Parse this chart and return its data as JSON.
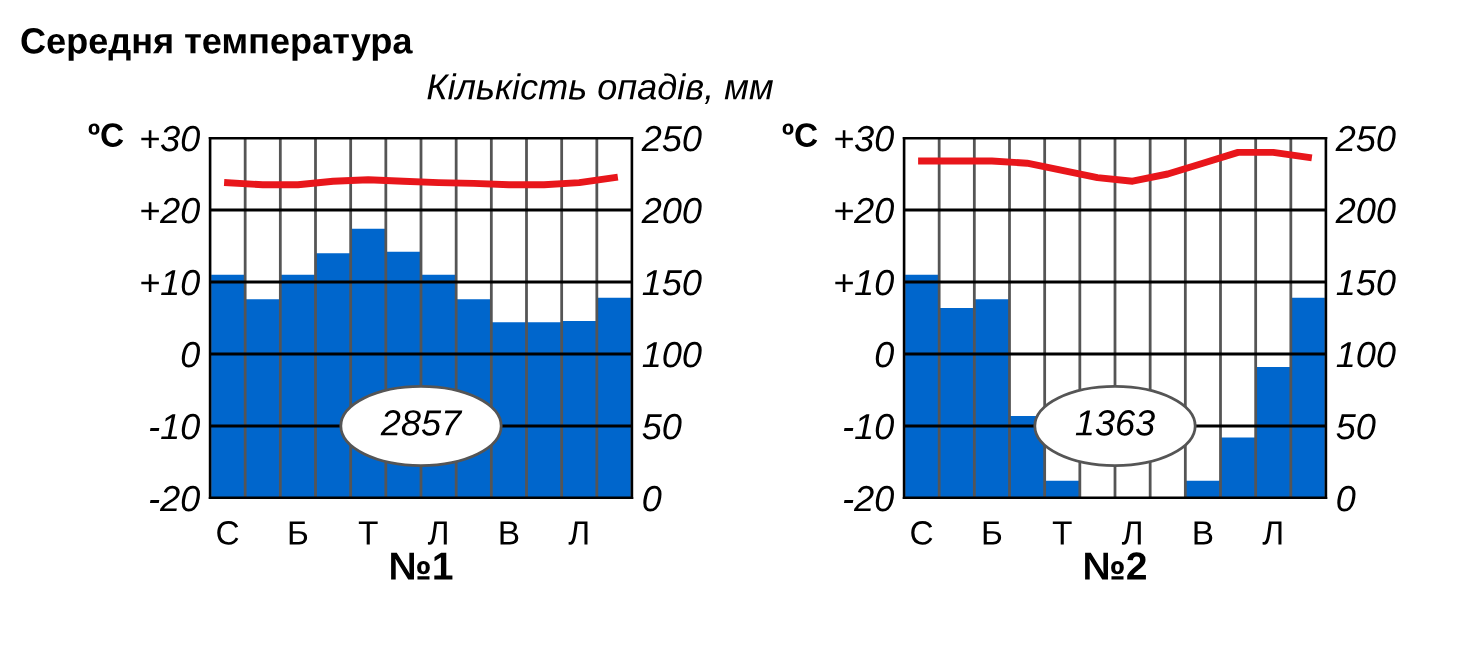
{
  "chart_data": [
    {
      "type": "bar",
      "title": "Середня температура",
      "ylabel": "ºC",
      "y2label": "Кількість опадів, мм",
      "xlabel": "№1",
      "categories": [
        "С",
        null,
        "Б",
        null,
        "Т",
        null,
        "Л",
        null,
        "В",
        null,
        "Л",
        null
      ],
      "series": [
        {
          "axis": "y2",
          "color": "#0066cc",
          "values": [
            155,
            138,
            155,
            170,
            187,
            171,
            155,
            138,
            122,
            122,
            123,
            139
          ]
        },
        {
          "type": "line",
          "color": "#e8161b",
          "values": [
            23.8,
            23.5,
            23.5,
            24,
            24.2,
            24,
            23.8,
            23.7,
            23.5,
            23.5,
            23.8,
            24.5
          ]
        }
      ],
      "ylim": [
        -20,
        30
      ],
      "yticks": [
        -20,
        -10,
        0,
        {
          "value": 10,
          "label": "+10"
        },
        {
          "value": 20,
          "label": "+20"
        },
        {
          "value": 30,
          "label": "+30"
        }
      ],
      "y2lim": [
        0,
        250
      ],
      "y2ticks": [
        0,
        50,
        100,
        150,
        200,
        250
      ],
      "grid": true,
      "annotations": [
        "2857"
      ]
    },
    {
      "type": "bar",
      "ylabel": "ºC",
      "xlabel": "№2",
      "categories": [
        "С",
        null,
        "Б",
        null,
        "Т",
        null,
        "Л",
        null,
        "В",
        null,
        "Л",
        null
      ],
      "series": [
        {
          "axis": "y2",
          "color": "#0066cc",
          "values": [
            155,
            132,
            138,
            57,
            12,
            0,
            0,
            0,
            12,
            42,
            91,
            139
          ]
        },
        {
          "type": "line",
          "color": "#e8161b",
          "values": [
            26.8,
            26.8,
            26.8,
            26.5,
            25.5,
            24.5,
            24,
            25,
            26.5,
            28,
            28,
            27.3
          ]
        }
      ],
      "ylim": [
        -20,
        30
      ],
      "yticks": [
        -20,
        -10,
        0,
        {
          "value": 10,
          "label": "+10"
        },
        {
          "value": 20,
          "label": "+20"
        },
        {
          "value": 30,
          "label": "+30"
        }
      ],
      "y2lim": [
        0,
        250
      ],
      "y2ticks": [
        0,
        50,
        100,
        150,
        200,
        250
      ],
      "grid": true,
      "annotations": [
        "1363"
      ]
    }
  ]
}
